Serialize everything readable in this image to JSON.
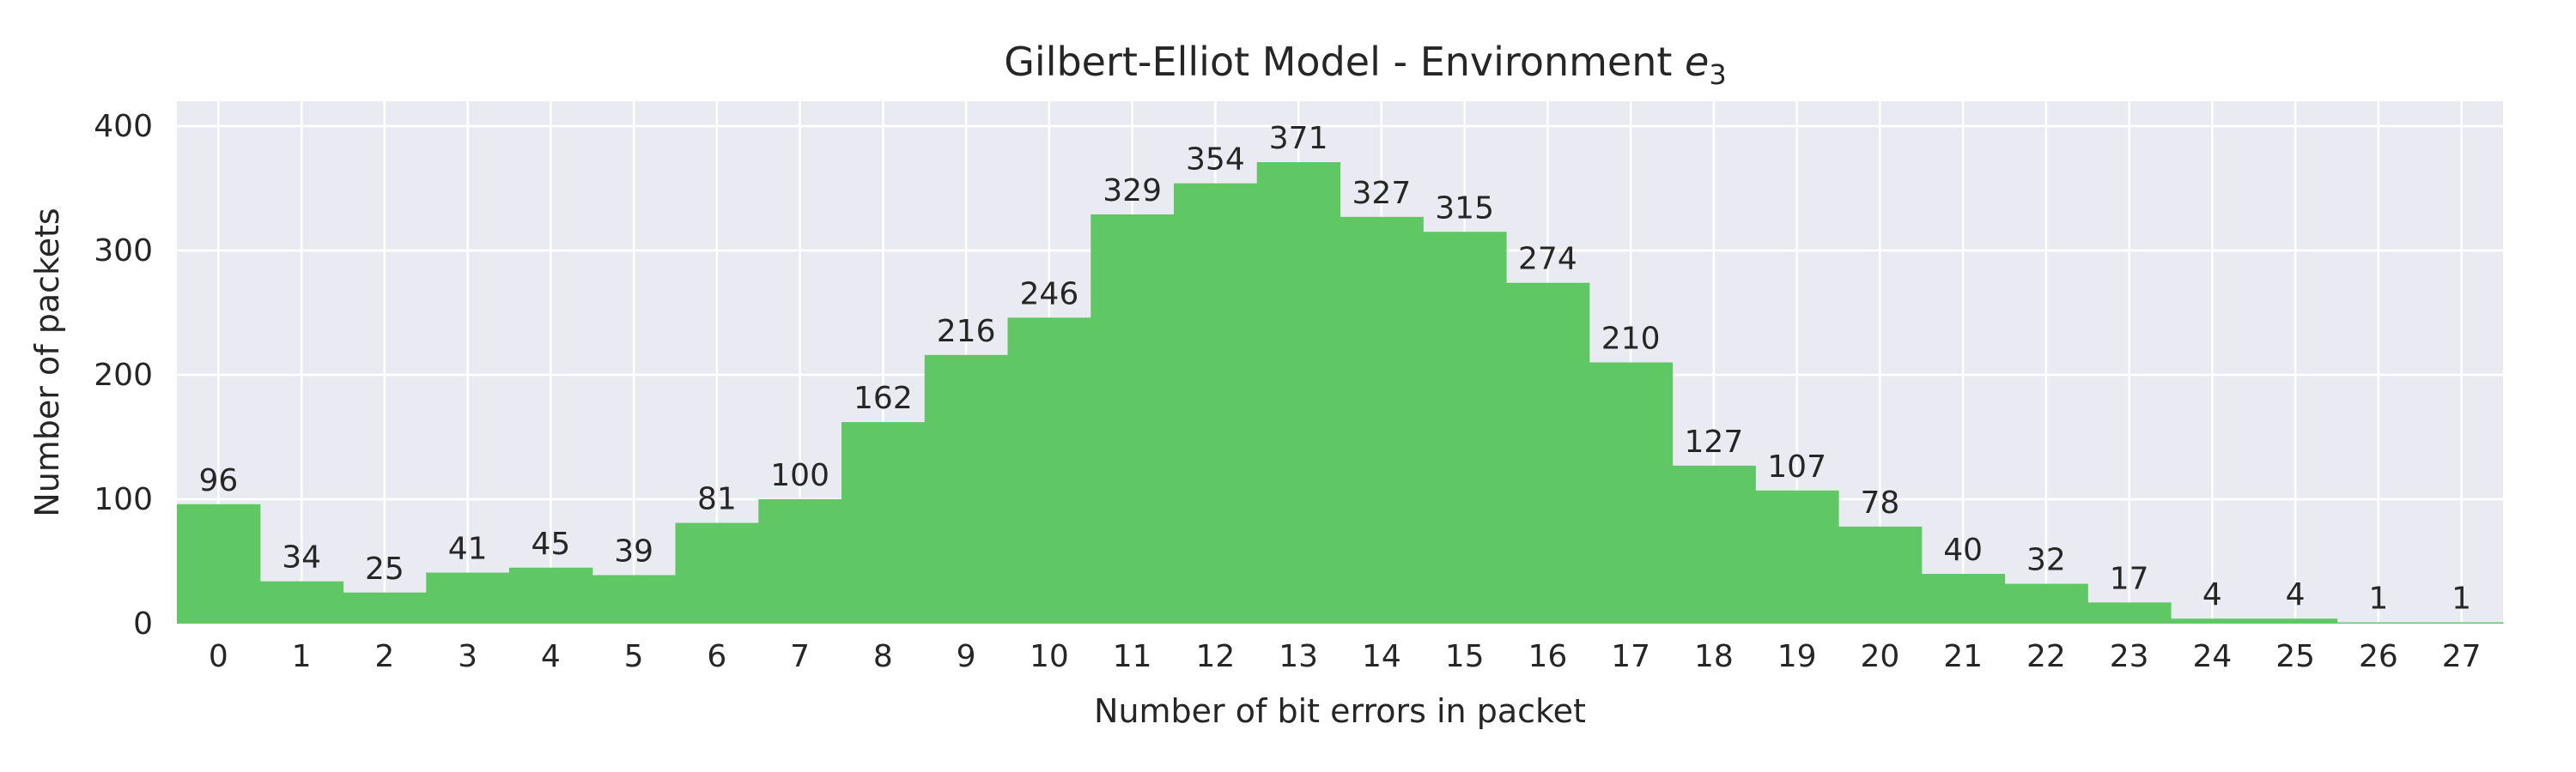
{
  "chart_data": {
    "type": "bar",
    "title_prefix": "Gilbert-Elliot Model - Environment ",
    "title_var": "e",
    "title_sub": "3",
    "xlabel": "Number of bit errors in packet",
    "ylabel": "Number of packets",
    "categories": [
      "0",
      "1",
      "2",
      "3",
      "4",
      "5",
      "6",
      "7",
      "8",
      "9",
      "10",
      "11",
      "12",
      "13",
      "14",
      "15",
      "16",
      "17",
      "18",
      "19",
      "20",
      "21",
      "22",
      "23",
      "24",
      "25",
      "26",
      "27"
    ],
    "values": [
      96,
      34,
      25,
      41,
      45,
      39,
      81,
      100,
      162,
      216,
      246,
      329,
      354,
      371,
      327,
      315,
      274,
      210,
      127,
      107,
      78,
      40,
      32,
      17,
      4,
      4,
      1,
      1
    ],
    "data_labels": [
      "96",
      "34",
      "25",
      "41",
      "45",
      "39",
      "81",
      "100",
      "162",
      "216",
      "246",
      "329",
      "354",
      "371",
      "327",
      "315",
      "274",
      "210",
      "127",
      "107",
      "78",
      "40",
      "32",
      "17",
      "4",
      "4",
      "1",
      "1"
    ],
    "yticks": [
      0,
      100,
      200,
      300,
      400
    ],
    "ytick_labels": [
      "0",
      "100",
      "200",
      "300",
      "400"
    ],
    "ylim": [
      0,
      420
    ],
    "grid": true,
    "colors": {
      "bar": "#5fc865",
      "background": "#eaeaf2",
      "grid": "#ffffff",
      "text": "#262626"
    }
  }
}
